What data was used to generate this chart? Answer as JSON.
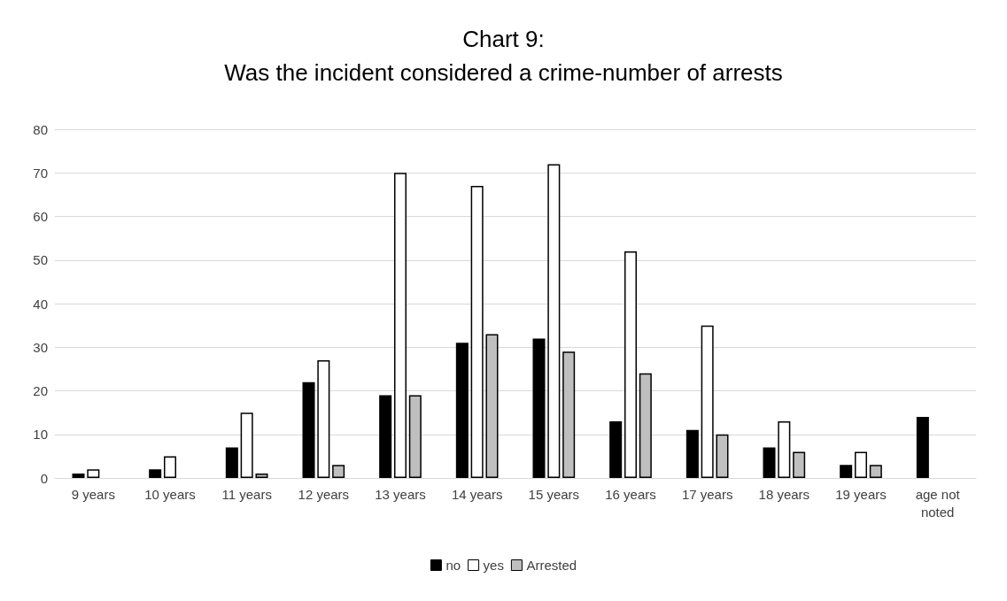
{
  "chart_data": {
    "type": "bar",
    "title": "Chart 9:\nWas the incident considered a crime-number of arrests",
    "categories": [
      "9 years",
      "10 years",
      "11 years",
      "12 years",
      "13 years",
      "14 years",
      "15 years",
      "16 years",
      "17 years",
      "18 years",
      "19 years",
      "age not\nnoted"
    ],
    "series": [
      {
        "name": "no",
        "color": "#000000",
        "values": [
          1,
          2,
          7,
          22,
          19,
          31,
          32,
          13,
          11,
          7,
          3,
          14
        ]
      },
      {
        "name": "yes",
        "color": "#ffffff",
        "values": [
          2,
          5,
          15,
          27,
          70,
          67,
          72,
          52,
          35,
          13,
          6,
          null
        ]
      },
      {
        "name": "Arrested",
        "color": "#bfbfbf",
        "values": [
          null,
          null,
          1,
          3,
          19,
          33,
          29,
          24,
          10,
          6,
          3,
          null
        ]
      }
    ],
    "ylim": [
      0,
      80
    ],
    "yticks": [
      0,
      10,
      20,
      30,
      40,
      50,
      60,
      70,
      80
    ],
    "grid": "y",
    "legend": "bottom"
  }
}
